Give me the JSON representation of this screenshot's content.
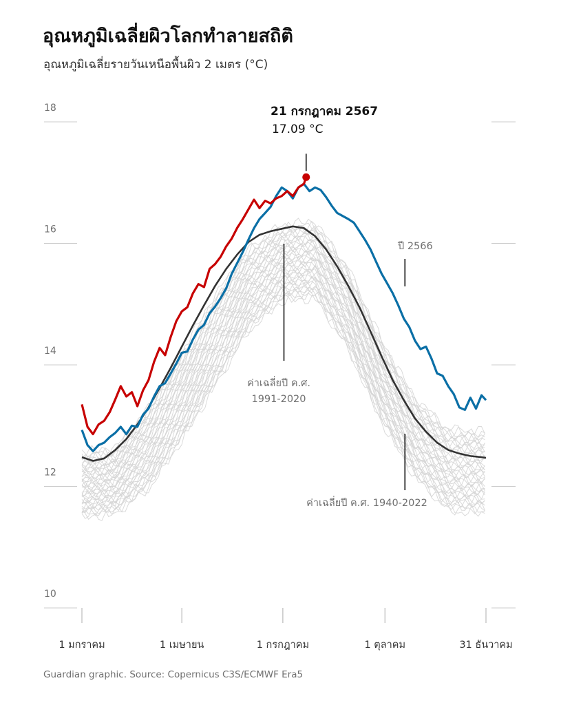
{
  "header": {
    "title": "อุณหภูมิเฉลี่ยผิวโลกทำลายสถิติ",
    "subtitle": "อุณหภูมิเฉลี่ยรายวันเหนือพื้นผิว 2 เมตร (°C)"
  },
  "source": "Guardian graphic. Source: Copernicus C3S/ECMWF Era5",
  "colors": {
    "series_2024": "#c70000",
    "series_2023": "#0a6fa6",
    "mean_1991_2020": "#333333",
    "history": "#d4d4d4",
    "grid": "#cccccc"
  },
  "chart_data": {
    "type": "line",
    "title": "อุณหภูมิเฉลี่ยผิวโลกทำลายสถิติ",
    "ylabel": "อุณหภูมิเฉลี่ยรายวันเหนือพื้นผิว 2 เมตร (°C)",
    "xlabel": "",
    "x_unit": "day of year",
    "xlim": [
      1,
      365
    ],
    "ylim": [
      10,
      18
    ],
    "y_ticks": [
      "18",
      "16",
      "14",
      "12",
      "10"
    ],
    "y_tick_values": [
      18,
      16,
      14,
      12,
      10
    ],
    "x_ticks": [
      {
        "day": 1,
        "label": "1 มกราคม"
      },
      {
        "day": 91,
        "label": "1 เมษายน"
      },
      {
        "day": 182,
        "label": "1 กรกฎาคม"
      },
      {
        "day": 274,
        "label": "1 ตุลาคม"
      },
      {
        "day": 365,
        "label": "31 ธันวาคม"
      }
    ],
    "series": [
      {
        "name": "ปี 2567",
        "role": "year_2024",
        "x": [
          1,
          6,
          11,
          16,
          21,
          26,
          31,
          36,
          41,
          46,
          51,
          56,
          61,
          66,
          71,
          76,
          81,
          86,
          91,
          96,
          101,
          106,
          111,
          116,
          121,
          126,
          131,
          136,
          141,
          146,
          151,
          156,
          161,
          166,
          171,
          176,
          181,
          186,
          191,
          196,
          201,
          203
        ],
        "values": [
          13.35,
          12.98,
          12.86,
          13.02,
          13.08,
          13.22,
          13.43,
          13.65,
          13.48,
          13.55,
          13.32,
          13.58,
          13.75,
          14.05,
          14.28,
          14.16,
          14.46,
          14.72,
          14.88,
          14.95,
          15.18,
          15.33,
          15.28,
          15.58,
          15.66,
          15.78,
          15.95,
          16.08,
          16.26,
          16.4,
          16.56,
          16.72,
          16.58,
          16.7,
          16.66,
          16.74,
          16.78,
          16.86,
          16.78,
          16.92,
          16.98,
          17.09
        ]
      },
      {
        "name": "ปี 2566",
        "role": "year_2023",
        "x": [
          1,
          6,
          11,
          16,
          21,
          26,
          31,
          36,
          41,
          46,
          51,
          56,
          61,
          66,
          71,
          76,
          81,
          86,
          91,
          96,
          101,
          106,
          111,
          116,
          121,
          126,
          131,
          136,
          141,
          146,
          151,
          156,
          161,
          166,
          171,
          176,
          181,
          186,
          191,
          196,
          201,
          206,
          211,
          216,
          221,
          226,
          231,
          236,
          241,
          246,
          251,
          256,
          261,
          266,
          271,
          276,
          281,
          286,
          291,
          296,
          301,
          306,
          311,
          316,
          321,
          326,
          331,
          336,
          341,
          346,
          351,
          356,
          361,
          365
        ],
        "values": [
          12.93,
          12.68,
          12.58,
          12.68,
          12.72,
          12.81,
          12.88,
          12.98,
          12.86,
          13.0,
          12.98,
          13.18,
          13.28,
          13.48,
          13.65,
          13.7,
          13.86,
          14.02,
          14.2,
          14.22,
          14.42,
          14.58,
          14.66,
          14.85,
          14.96,
          15.1,
          15.26,
          15.5,
          15.68,
          15.86,
          16.06,
          16.25,
          16.4,
          16.5,
          16.6,
          16.78,
          16.92,
          16.86,
          16.74,
          16.92,
          16.98,
          16.86,
          16.92,
          16.88,
          16.76,
          16.62,
          16.5,
          16.45,
          16.4,
          16.34,
          16.2,
          16.06,
          15.9,
          15.7,
          15.5,
          15.34,
          15.18,
          14.98,
          14.76,
          14.62,
          14.4,
          14.26,
          14.3,
          14.1,
          13.86,
          13.82,
          13.65,
          13.52,
          13.3,
          13.26,
          13.46,
          13.28,
          13.5,
          13.42
        ]
      },
      {
        "name": "ค่าเฉลี่ยปี ค.ศ. 1991-2020",
        "role": "mean",
        "x": [
          1,
          11,
          21,
          31,
          41,
          51,
          61,
          71,
          81,
          91,
          101,
          111,
          121,
          131,
          141,
          151,
          161,
          171,
          181,
          191,
          201,
          211,
          221,
          231,
          241,
          251,
          261,
          271,
          281,
          291,
          301,
          311,
          321,
          331,
          341,
          351,
          361,
          365
        ],
        "values": [
          12.48,
          12.42,
          12.46,
          12.6,
          12.78,
          13.02,
          13.3,
          13.62,
          13.95,
          14.3,
          14.65,
          14.98,
          15.3,
          15.58,
          15.82,
          16.02,
          16.14,
          16.2,
          16.24,
          16.28,
          16.25,
          16.12,
          15.9,
          15.62,
          15.3,
          14.95,
          14.55,
          14.14,
          13.75,
          13.42,
          13.12,
          12.9,
          12.72,
          12.6,
          12.54,
          12.5,
          12.48,
          12.47
        ]
      },
      {
        "name": "ค่าเฉลี่ยปี ค.ศ. 1940-2022",
        "role": "history_envelope",
        "x": [
          1,
          31,
          61,
          91,
          121,
          151,
          181,
          211,
          241,
          271,
          301,
          331,
          365
        ],
        "upper": [
          12.55,
          12.62,
          13.3,
          14.2,
          15.15,
          15.9,
          16.3,
          16.35,
          15.6,
          14.4,
          13.45,
          12.95,
          12.9
        ],
        "lower": [
          11.5,
          11.55,
          11.95,
          12.75,
          13.65,
          14.55,
          15.05,
          15.1,
          14.25,
          13.05,
          12.15,
          11.6,
          11.55
        ]
      }
    ],
    "annotations": [
      {
        "text_date": "21 กรกฎาคม 2567",
        "text_value": "17.09 °C",
        "day": 203,
        "value": 17.09
      },
      {
        "text": "ปี 2566",
        "day": 292
      },
      {
        "text_line1": "ค่าเฉลี่ยปี ค.ศ.",
        "text_line2": "1991-2020",
        "day": 183
      },
      {
        "text": "ค่าเฉลี่ยปี ค.ศ. 1940-2022",
        "day": 292
      }
    ]
  }
}
